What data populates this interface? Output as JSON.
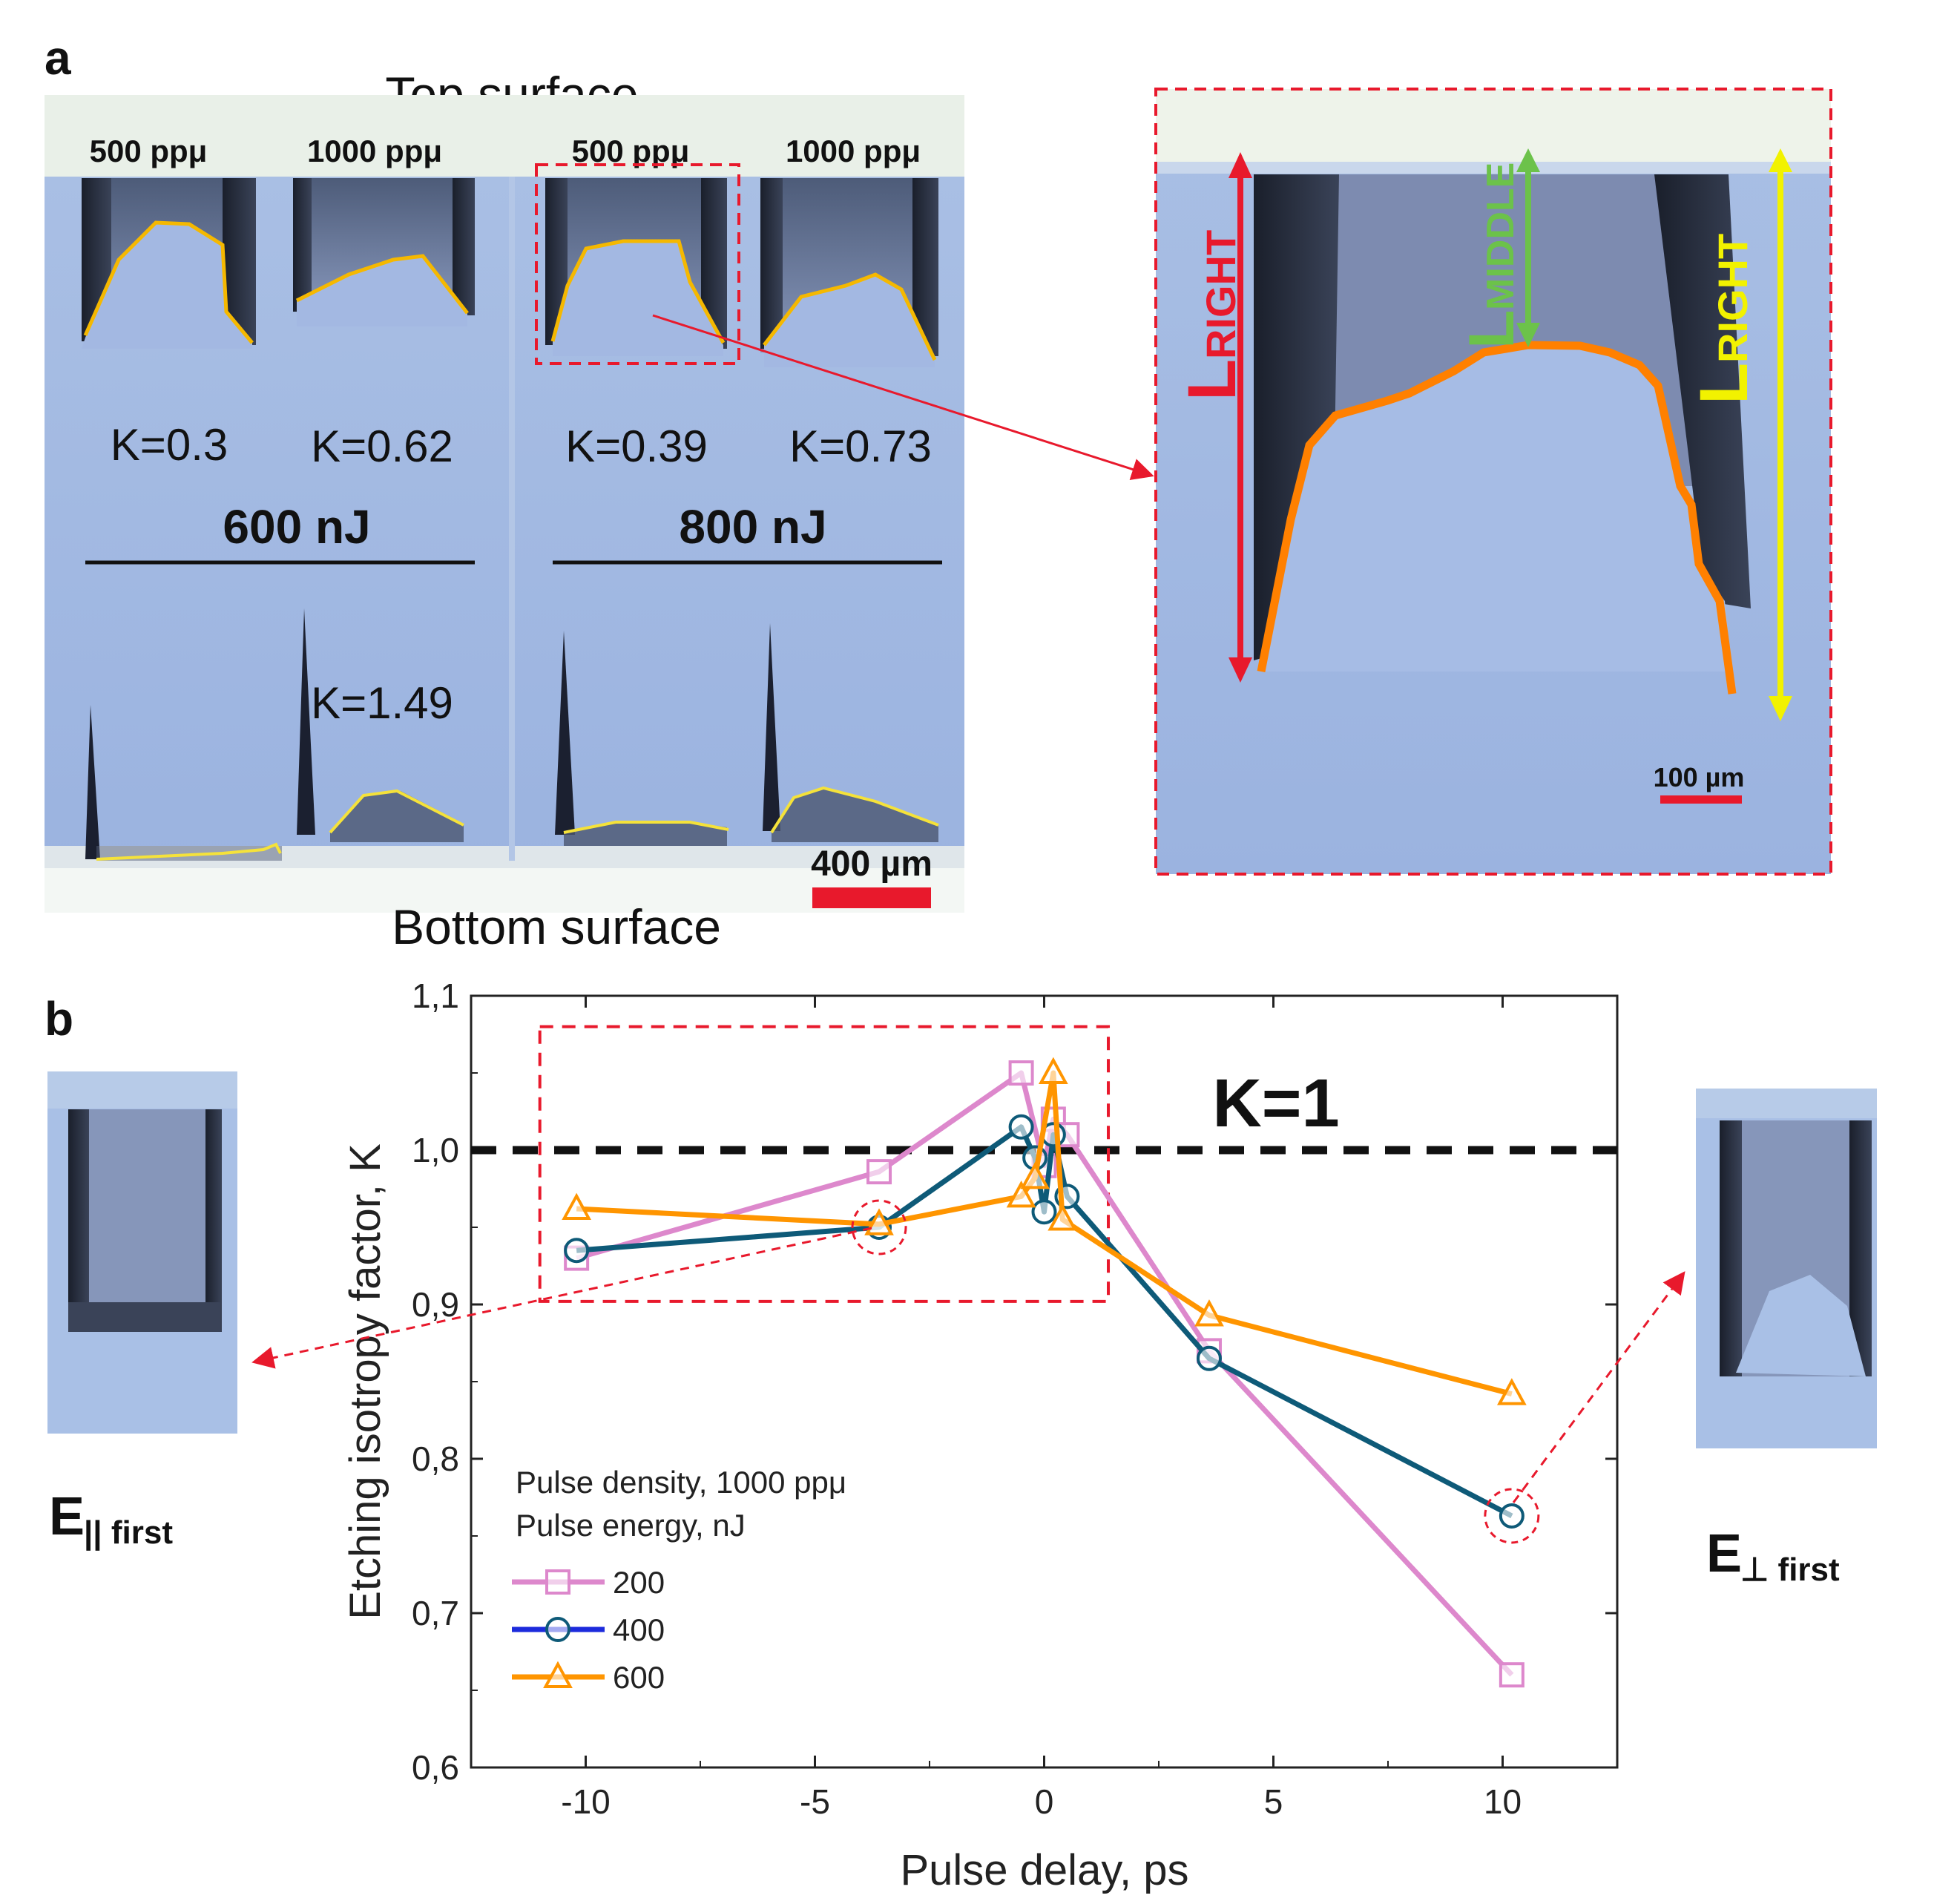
{
  "panel_a": {
    "letter": "a",
    "top_label": "Top surface",
    "bottom_label": "Bottom surface",
    "density_labels": [
      "500 ppμ",
      "1000 ppμ",
      "500 ppμ",
      "1000 ppμ"
    ],
    "k_values_top": [
      "K=0.3",
      "K=0.62",
      "K=0.39",
      "K=0.73"
    ],
    "k_value_bottom": "K=1.49",
    "energy_labels": [
      "600 nJ",
      "800 nJ"
    ],
    "scale_bar": "400 µm",
    "zoom_scale_bar": "100 µm",
    "zoom_labels": {
      "left_main": "L",
      "left_sub": "RIGHT",
      "middle_main": "L",
      "middle_sub": "MIDDLE",
      "right_main": "L",
      "right_sub": "RIGHT"
    },
    "colors": {
      "left": "#e8192c",
      "middle": "#6cc24a",
      "right": "#f2f200",
      "profile": "#ff8000",
      "trace": "#f5b800"
    }
  },
  "panel_b": {
    "letter": "b",
    "left_inset_label": "E",
    "left_inset_sub": "|| first",
    "right_inset_label": "E",
    "right_inset_sub": "⊥ first",
    "k_line_label": "K=1"
  },
  "chart_data": {
    "type": "line",
    "xlabel": "Pulse delay, ps",
    "ylabel": "Etching isotropy factor, K",
    "xlim": [
      -12.5,
      12.5
    ],
    "ylim": [
      0.6,
      1.1
    ],
    "xticks": [
      -10,
      -5,
      0,
      5,
      10
    ],
    "xtick_labels": [
      "-10",
      "-5",
      "0",
      "5",
      "10"
    ],
    "yticks": [
      0.6,
      0.7,
      0.8,
      0.9,
      1.0,
      1.1
    ],
    "ytick_labels": [
      "0,6",
      "0,7",
      "0,8",
      "0,9",
      "1,0",
      "1,1"
    ],
    "reference_line": {
      "y": 1.0,
      "label": "K=1"
    },
    "legend_title": [
      "Pulse density, 1000 ppμ",
      "Pulse energy, nJ"
    ],
    "series": [
      {
        "name": "200",
        "color": "#dd88cc",
        "marker": "square",
        "x": [
          -10.2,
          -3.6,
          -0.5,
          0,
          0.2,
          0.5,
          3.6,
          10.2
        ],
        "y": [
          0.93,
          0.986,
          1.05,
          0.99,
          1.02,
          1.01,
          0.87,
          0.66
        ]
      },
      {
        "name": "400",
        "color": "#0e5a78",
        "legend_color": "#1c2bdc",
        "marker": "circle",
        "x": [
          -10.2,
          -3.6,
          -0.5,
          -0.2,
          0,
          0.2,
          0.5,
          3.6,
          10.2
        ],
        "y": [
          0.935,
          0.95,
          1.015,
          0.995,
          0.96,
          1.01,
          0.97,
          0.865,
          0.763
        ]
      },
      {
        "name": "600",
        "color": "#ff9500",
        "marker": "triangle",
        "x": [
          -10.2,
          -3.6,
          -0.5,
          -0.2,
          0.2,
          0.4,
          3.6,
          10.2
        ],
        "y": [
          0.962,
          0.952,
          0.97,
          0.982,
          1.05,
          0.955,
          0.893,
          0.842
        ]
      }
    ],
    "highlight_box": {
      "x": [
        -11,
        1.4
      ],
      "y": [
        0.902,
        1.08
      ]
    },
    "circled_points": [
      {
        "x": -3.6,
        "y": 0.95
      },
      {
        "x": 10.2,
        "y": 0.763
      }
    ]
  }
}
